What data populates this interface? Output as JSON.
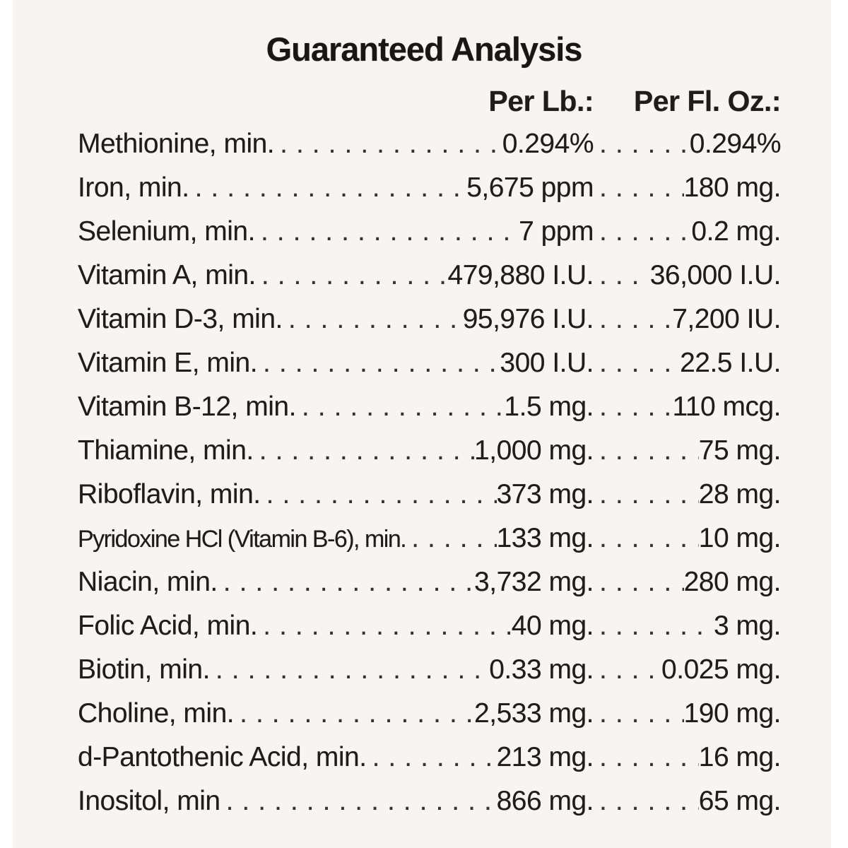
{
  "label": {
    "title": "Guaranteed Analysis",
    "columns": {
      "per_lb": "Per Lb.:",
      "per_fl_oz": "Per Fl. Oz.:"
    },
    "leader": ".............................................",
    "rows": [
      {
        "name": "Methionine, min.",
        "per_lb": "0.294%",
        "per_fl_oz": "0.294%"
      },
      {
        "name": "Iron, min.",
        "per_lb": "5,675 ppm",
        "per_fl_oz": "180 mg."
      },
      {
        "name": "Selenium, min.",
        "per_lb": "7 ppm",
        "per_fl_oz": "0.2 mg."
      },
      {
        "name": "Vitamin A, min.",
        "per_lb": "479,880 I.U.",
        "per_fl_oz": "36,000 I.U."
      },
      {
        "name": "Vitamin D-3, min.",
        "per_lb": "95,976 I.U.",
        "per_fl_oz": "7,200 IU."
      },
      {
        "name": "Vitamin E, min.",
        "per_lb": "300 I.U.",
        "per_fl_oz": "22.5 I.U."
      },
      {
        "name": "Vitamin B-12, min.",
        "per_lb": "1.5 mg.",
        "per_fl_oz": "110 mcg."
      },
      {
        "name": "Thiamine, min.",
        "per_lb": "1,000 mg.",
        "per_fl_oz": "75 mg."
      },
      {
        "name": "Riboflavin, min.",
        "per_lb": "373 mg.",
        "per_fl_oz": "28 mg."
      },
      {
        "name": "Pyridoxine HCl (Vitamin B-6), min.",
        "per_lb": "133 mg.",
        "per_fl_oz": "10 mg.",
        "narrow": true
      },
      {
        "name": "Niacin, min.",
        "per_lb": "3,732 mg.",
        "per_fl_oz": "280 mg."
      },
      {
        "name": "Folic Acid, min.",
        "per_lb": "40 mg.",
        "per_fl_oz": "3 mg."
      },
      {
        "name": "Biotin, min.",
        "per_lb": "0.33 mg.",
        "per_fl_oz": "0.025 mg."
      },
      {
        "name": "Choline, min.",
        "per_lb": "2,533 mg.",
        "per_fl_oz": "190 mg."
      },
      {
        "name": "d-Pantothenic Acid, min.",
        "per_lb": "213 mg.",
        "per_fl_oz": "16 mg."
      },
      {
        "name": "Inositol, min",
        "per_lb": "866 mg.",
        "per_fl_oz": "65 mg."
      }
    ],
    "colors": {
      "paper": "#f7f4f2",
      "ink": "#1e1d1c",
      "edge_white": "#ffffff"
    }
  }
}
